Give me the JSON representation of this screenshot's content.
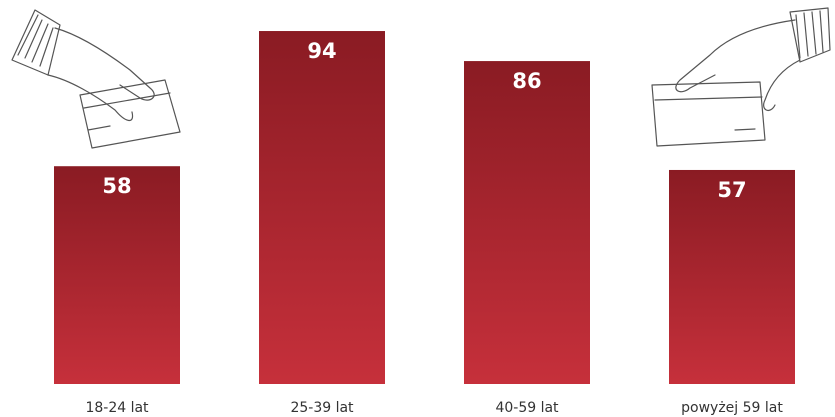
{
  "chart_data": {
    "type": "bar",
    "categories": [
      "18-24 lat",
      "25-39 lat",
      "40-59 lat",
      "powyżej 59 lat"
    ],
    "values": [
      58,
      94,
      86,
      57
    ],
    "color_top": "#8a1b23",
    "color_bottom": "#c6303b",
    "ylim": [
      0,
      100
    ]
  }
}
